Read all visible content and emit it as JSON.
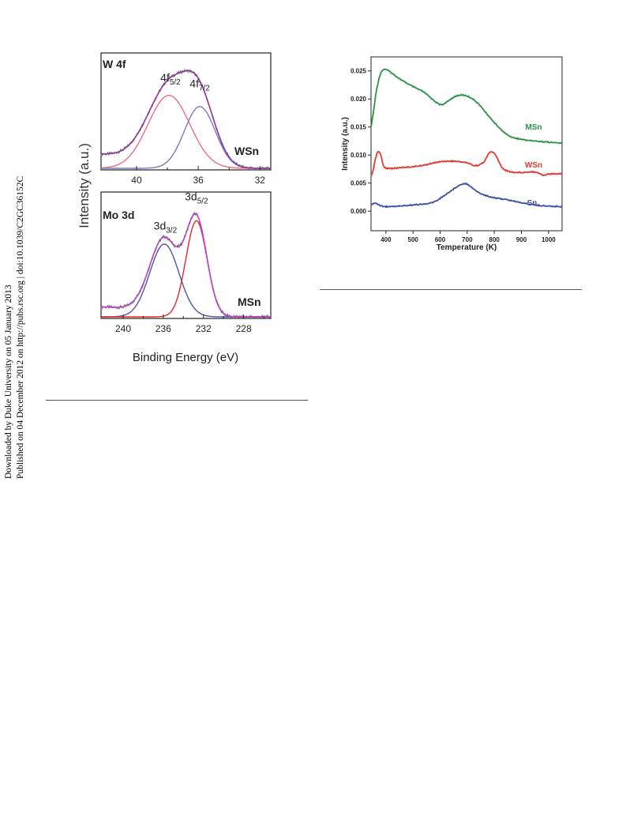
{
  "sidebar": {
    "line1": "Downloaded by Duke University on 05 January 2013",
    "line2": "Published on 04 December 2012 on http://pubs.rsc.org | doi:10.1039/C2GC36152C"
  },
  "chart_data": [
    {
      "type": "line",
      "panel": "W 4f",
      "title": "W 4f",
      "sample_label": "WSn",
      "peak_labels": [
        {
          "main": "4f",
          "sub": "5/2",
          "x": 37.8
        },
        {
          "main": "4f",
          "sub": "7/2",
          "x": 35.9
        }
      ],
      "xlabel": "",
      "ylabel": "Intensity (a.u.)",
      "xlim": [
        42.3,
        31.3
      ],
      "x_reversed": true,
      "ticks": [
        40,
        36,
        32
      ],
      "series": [
        {
          "role": "peak1",
          "color": "#f06b7f",
          "center": 37.9,
          "height": 0.78,
          "width": 1.35
        },
        {
          "role": "peak2",
          "color": "#7b78c4",
          "center": 35.9,
          "height": 0.66,
          "width": 1.0
        },
        {
          "role": "envelope",
          "color": "#8b3a9c",
          "center": 0,
          "height": 0,
          "width": 0
        },
        {
          "role": "experimental",
          "color": "#777777",
          "center": 0,
          "height": 0,
          "width": 0
        }
      ],
      "background": {
        "start": 0.15,
        "end": 0.0
      }
    },
    {
      "type": "line",
      "panel": "Mo 3d",
      "title": "Mo 3d",
      "sample_label": "MSn",
      "peak_labels": [
        {
          "main": "3d",
          "sub": "3/2",
          "x": 235.8
        },
        {
          "main": "3d",
          "sub": "5/2",
          "x": 232.7
        }
      ],
      "xlabel": "Binding Energy (eV)",
      "ylabel": "",
      "xlim": [
        242.2,
        225.3
      ],
      "x_reversed": true,
      "ticks": [
        240,
        236,
        232,
        228
      ],
      "series": [
        {
          "role": "peak1",
          "color": "#4d55a8",
          "center": 235.9,
          "height": 0.72,
          "width": 1.45
        },
        {
          "role": "peak2",
          "color": "#e8262a",
          "center": 232.7,
          "height": 0.95,
          "width": 1.05
        },
        {
          "role": "envelope",
          "color": "#b545c8",
          "center": 0,
          "height": 0,
          "width": 0
        },
        {
          "role": "experimental",
          "color": "#777777",
          "center": 0,
          "height": 0,
          "width": 0
        }
      ],
      "background": {
        "start": 0.1,
        "end": 0.0
      }
    },
    {
      "type": "line",
      "panel": "tpd",
      "title": "",
      "xlabel": "Temperature (K)",
      "ylabel": "Intensity (a.u.)",
      "xlim": [
        345,
        1050
      ],
      "ylim": [
        -0.0035,
        0.0275
      ],
      "xticks": [
        400,
        500,
        600,
        700,
        800,
        900,
        1000
      ],
      "yticks": [
        0.0,
        0.005,
        0.01,
        0.015,
        0.02,
        0.025
      ],
      "ytick_labels": [
        "0.000",
        "0.005",
        "0.010",
        "0.015",
        "0.020",
        "0.025"
      ],
      "series": [
        {
          "name": "MSn",
          "color": "#2b9244",
          "x": [
            345,
            355,
            365,
            380,
            395,
            410,
            430,
            460,
            500,
            540,
            570,
            600,
            620,
            650,
            680,
            710,
            740,
            770,
            800,
            830,
            860,
            900,
            950,
            1000,
            1050
          ],
          "y": [
            0.015,
            0.018,
            0.0215,
            0.0245,
            0.0253,
            0.025,
            0.0243,
            0.0233,
            0.0222,
            0.0212,
            0.02,
            0.019,
            0.0193,
            0.0203,
            0.0207,
            0.0203,
            0.0192,
            0.0175,
            0.0158,
            0.0143,
            0.0133,
            0.0128,
            0.0125,
            0.0123,
            0.0121
          ]
        },
        {
          "name": "WSn",
          "color": "#e43a33",
          "x": [
            345,
            352,
            360,
            368,
            375,
            382,
            390,
            400,
            420,
            460,
            500,
            550,
            600,
            650,
            700,
            730,
            760,
            780,
            795,
            810,
            830,
            860,
            900,
            950,
            980,
            1000,
            1050
          ],
          "y": [
            0.0062,
            0.0071,
            0.009,
            0.0104,
            0.0106,
            0.0098,
            0.0082,
            0.0077,
            0.0076,
            0.0078,
            0.0079,
            0.0083,
            0.0088,
            0.0089,
            0.0086,
            0.0081,
            0.0087,
            0.0103,
            0.0105,
            0.0095,
            0.0077,
            0.007,
            0.0069,
            0.007,
            0.0064,
            0.0066,
            0.0067
          ]
        },
        {
          "name": "Sn",
          "color": "#3c51a3",
          "x": [
            345,
            360,
            380,
            400,
            450,
            500,
            550,
            580,
            610,
            640,
            660,
            680,
            695,
            710,
            730,
            760,
            800,
            850,
            900,
            950,
            1000,
            1050
          ],
          "y": [
            0.0011,
            0.0014,
            0.001,
            0.0008,
            0.0009,
            0.0011,
            0.0013,
            0.0017,
            0.0026,
            0.0036,
            0.0043,
            0.0048,
            0.0049,
            0.0045,
            0.0037,
            0.0029,
            0.0024,
            0.002,
            0.0015,
            0.0011,
            0.0009,
            0.0008
          ]
        }
      ]
    }
  ]
}
